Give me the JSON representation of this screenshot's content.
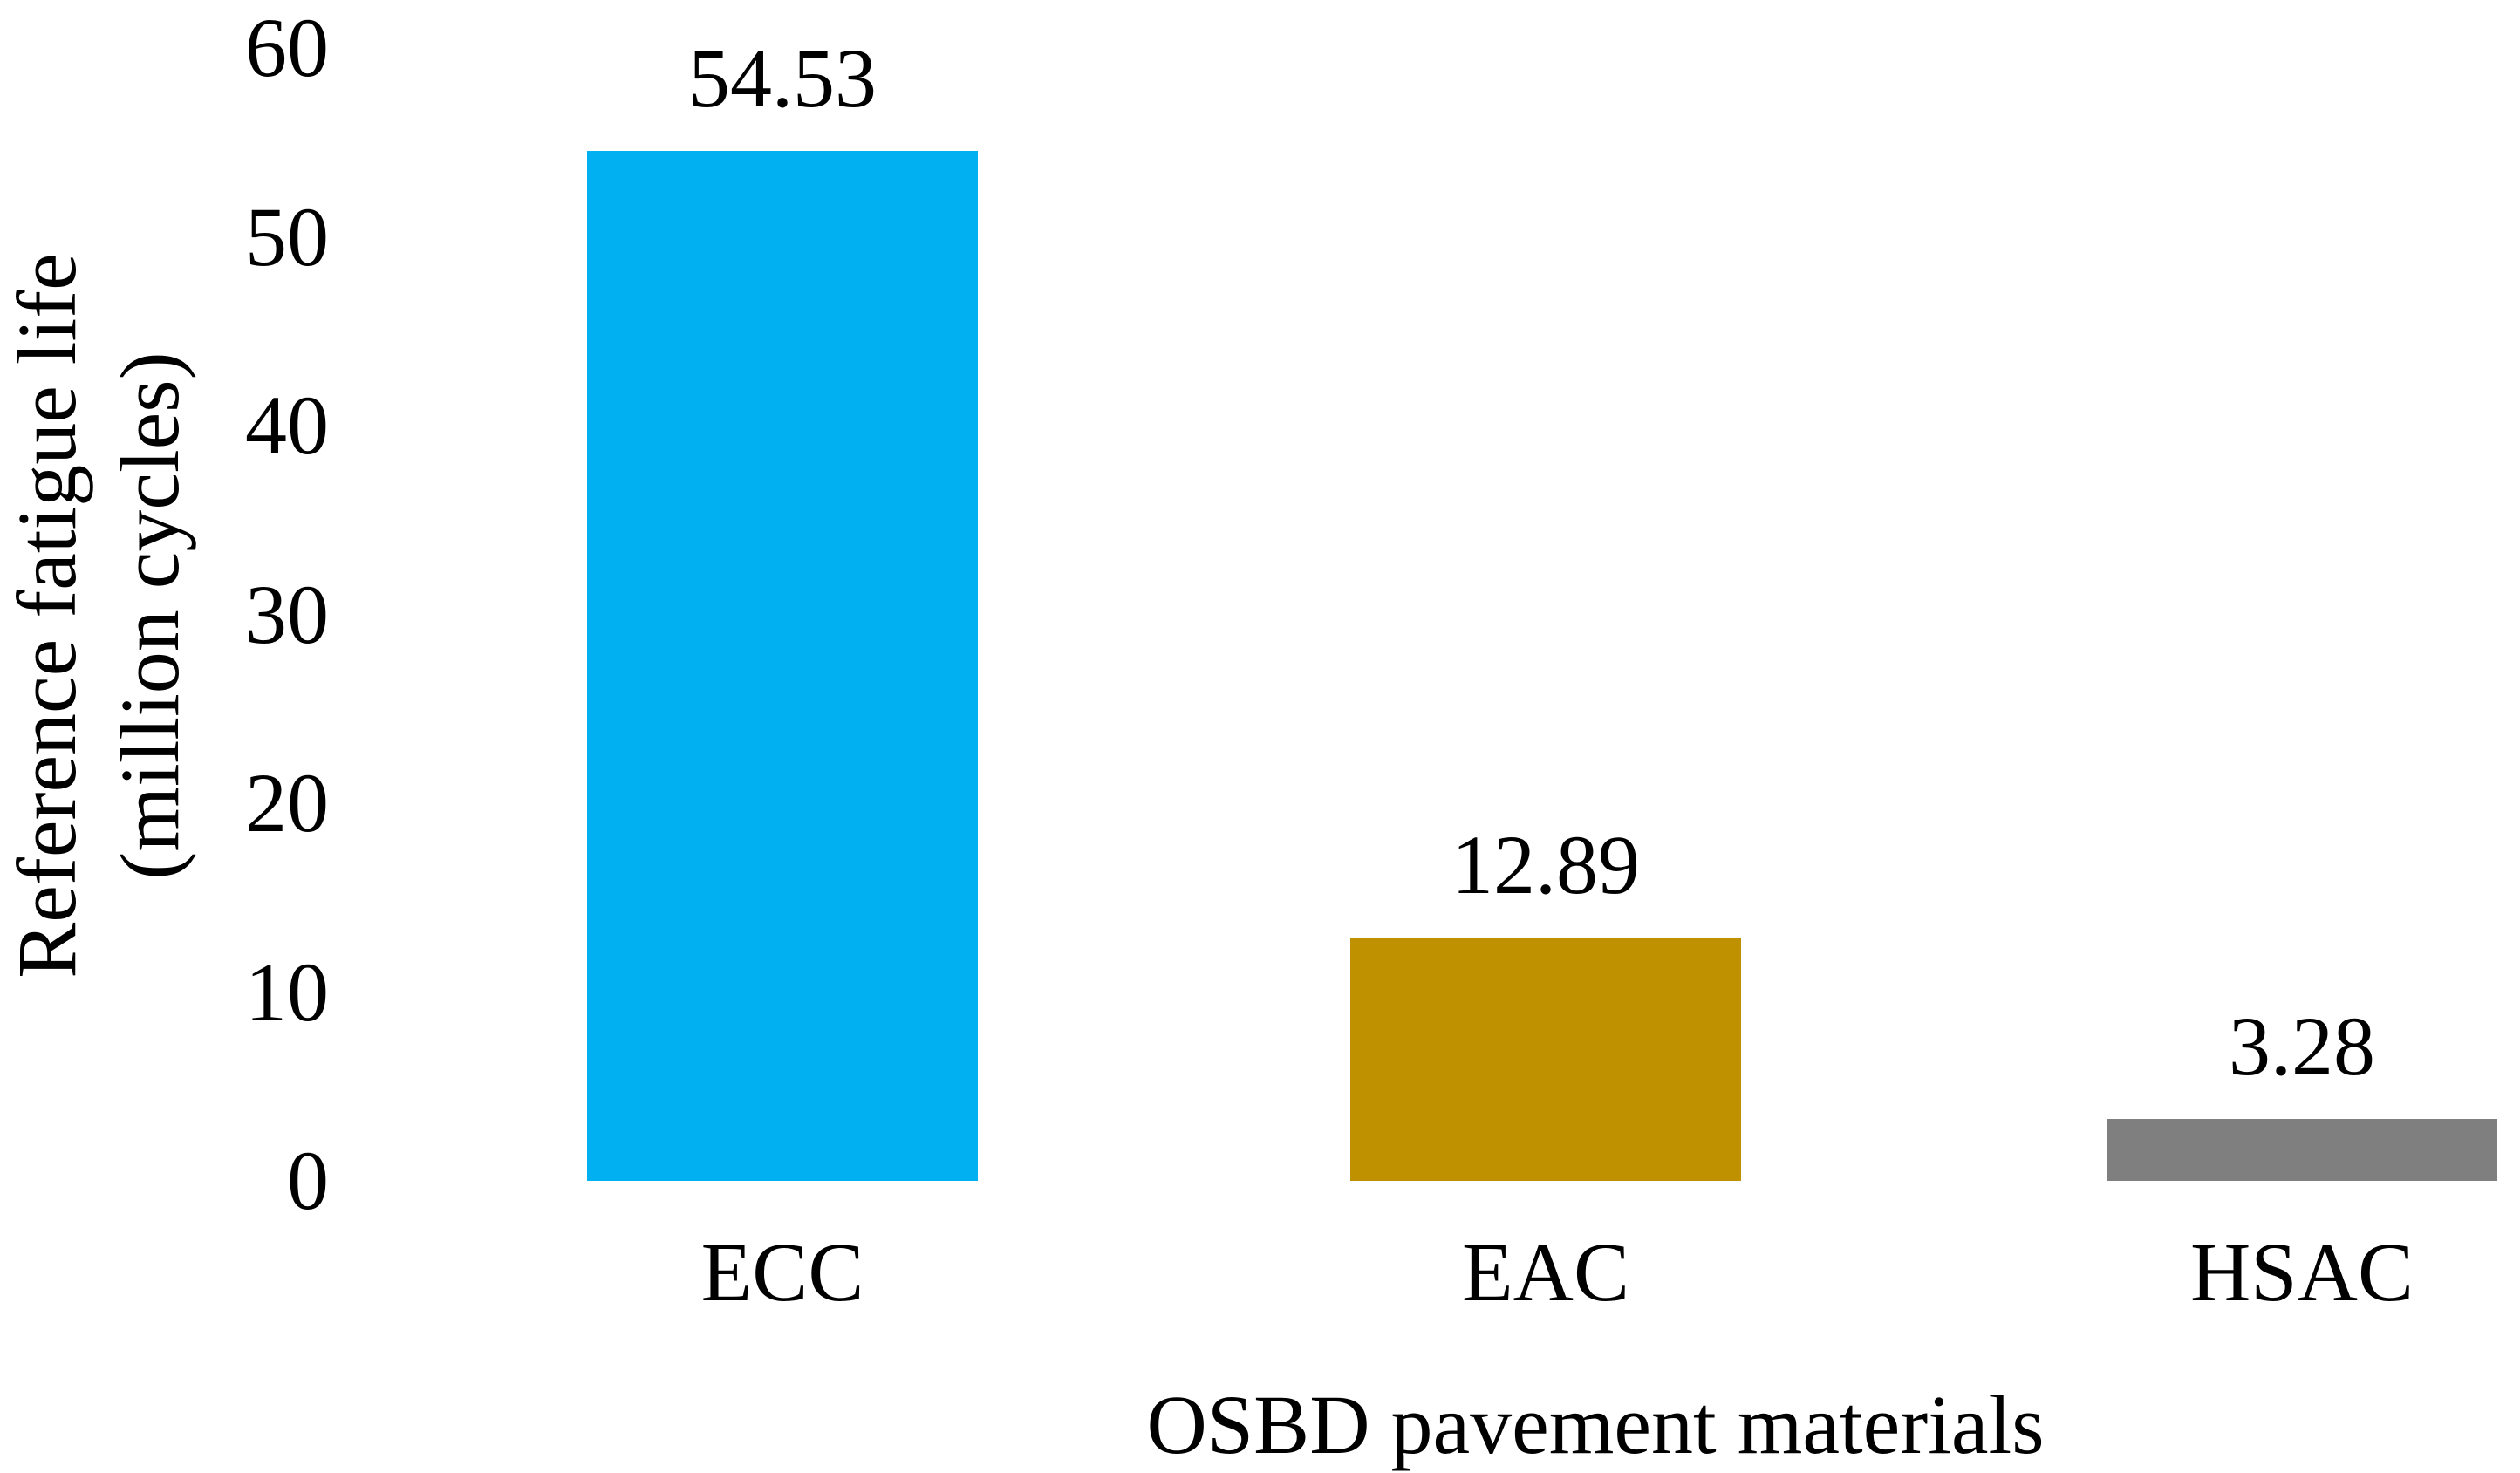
{
  "chart_data": {
    "type": "bar",
    "title": "",
    "categories": [
      "ECC",
      "EAC",
      "HSAC"
    ],
    "values": [
      54.53,
      12.89,
      3.28
    ],
    "value_labels": [
      "54.53",
      "12.89",
      "3.28"
    ],
    "bar_colors": [
      "#00B0F0",
      "#BF9000",
      "#7F7F7F"
    ],
    "xlabel": "OSBD pavement materials",
    "ylabel": "Reference fatigue life (million cycles)",
    "ylabel_lines": [
      "Reference fatigue life",
      "(million cycles)"
    ],
    "yticks": [
      0,
      10,
      20,
      30,
      40,
      50,
      60
    ],
    "ylim": [
      0,
      60
    ],
    "grid": false,
    "legend": false,
    "axis_lines": false,
    "text_color": "#000000",
    "background_color": "#FFFFFF"
  }
}
